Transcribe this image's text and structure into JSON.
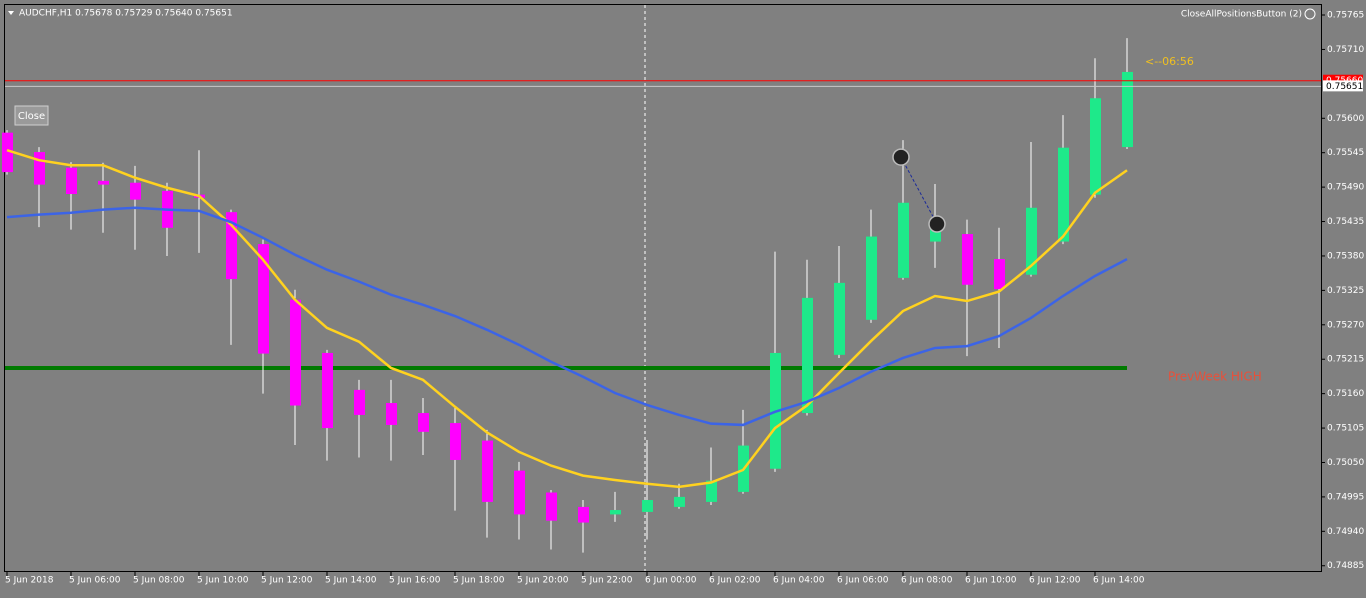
{
  "chart_data": {
    "type": "candlestick",
    "header_title": "AUDCHF,H1  0.75678 0.75729 0.75640 0.75651",
    "categories": [
      "5 Jun 2018",
      null,
      "5 Jun 06:00",
      null,
      "5 Jun 08:00",
      null,
      "5 Jun 10:00",
      null,
      "5 Jun 12:00",
      null,
      "5 Jun 14:00",
      null,
      "5 Jun 16:00",
      null,
      "5 Jun 18:00",
      null,
      "5 Jun 20:00",
      null,
      "5 Jun 22:00",
      null,
      "6 Jun 00:00",
      null,
      "6 Jun 02:00",
      null,
      "6 Jun 04:00",
      null,
      "6 Jun 06:00",
      null,
      "6 Jun 08:00",
      null,
      "6 Jun 10:00",
      null,
      "6 Jun 12:00",
      null,
      "6 Jun 14:00",
      null
    ],
    "open": [
      0.75577,
      0.75546,
      0.75521,
      0.755,
      0.75497,
      0.75484,
      0.75478,
      0.7545,
      0.75399,
      0.7531,
      0.75225,
      0.75166,
      0.75145,
      0.75129,
      0.75113,
      0.75085,
      0.75037,
      0.75002,
      0.74979,
      0.74967,
      0.74971,
      0.74979,
      0.74987,
      0.75003,
      0.7504,
      0.75129,
      0.75222,
      0.75278,
      0.75345,
      0.75403,
      0.75415,
      0.75375,
      0.7535,
      0.75403,
      0.75478,
      0.75554
    ],
    "high": [
      0.75581,
      0.75554,
      0.7553,
      0.75529,
      0.75524,
      0.75497,
      0.75549,
      0.75454,
      0.75406,
      0.75326,
      0.7523,
      0.75182,
      0.75182,
      0.75153,
      0.75141,
      0.75102,
      0.75051,
      0.75006,
      0.7499,
      0.75003,
      0.75086,
      0.75016,
      0.75074,
      0.75134,
      0.75387,
      0.75374,
      0.75396,
      0.75454,
      0.75565,
      0.75495,
      0.75438,
      0.75425,
      0.75562,
      0.75605,
      0.75696,
      0.75728
    ],
    "low": [
      0.7551,
      0.75426,
      0.75422,
      0.75417,
      0.7539,
      0.7538,
      0.75385,
      0.75238,
      0.7516,
      0.75078,
      0.75053,
      0.75058,
      0.75053,
      0.75062,
      0.74973,
      0.7493,
      0.74927,
      0.74911,
      0.74906,
      0.74955,
      0.74927,
      0.74976,
      0.74982,
      0.75,
      0.75035,
      0.75125,
      0.75217,
      0.75273,
      0.75342,
      0.75361,
      0.7522,
      0.75233,
      0.75347,
      0.75399,
      0.75473,
      0.75551
    ],
    "close": [
      0.75514,
      0.75494,
      0.75479,
      0.75494,
      0.7547,
      0.75425,
      0.75473,
      0.75343,
      0.75224,
      0.75141,
      0.75105,
      0.75126,
      0.7511,
      0.75099,
      0.75054,
      0.74987,
      0.74967,
      0.74957,
      0.74954,
      0.74974,
      0.7499,
      0.74995,
      0.75021,
      0.75077,
      0.75225,
      0.75313,
      0.75337,
      0.75411,
      0.75465,
      0.75425,
      0.75334,
      0.75327,
      0.75457,
      0.75553,
      0.75632,
      0.75674
    ],
    "up_color": "#1ee98a",
    "down_color": "#ff00ff",
    "wick_color": "#ffffff",
    "series": [
      {
        "color": "#ffd21f",
        "values": [
          0.75549,
          0.75533,
          0.75525,
          0.75525,
          0.75505,
          0.75489,
          0.75476,
          0.7543,
          0.75374,
          0.7531,
          0.75265,
          0.75243,
          0.75201,
          0.75182,
          0.75139,
          0.75098,
          0.75067,
          0.75045,
          0.75029,
          0.75022,
          0.75016,
          0.75011,
          0.75018,
          0.75038,
          0.75105,
          0.75141,
          0.75193,
          0.75244,
          0.75292,
          0.75316,
          0.75308,
          0.75323,
          0.75364,
          0.75411,
          0.75481,
          0.75517
        ]
      },
      {
        "color": "#3c64e6",
        "values": [
          0.75442,
          0.75446,
          0.75449,
          0.75454,
          0.75457,
          0.75454,
          0.75452,
          0.75434,
          0.75409,
          0.75382,
          0.75358,
          0.75339,
          0.75318,
          0.75302,
          0.75284,
          0.75262,
          0.75238,
          0.75211,
          0.75187,
          0.75161,
          0.75142,
          0.75126,
          0.75112,
          0.7511,
          0.75131,
          0.75147,
          0.75169,
          0.75195,
          0.75217,
          0.75233,
          0.75236,
          0.75252,
          0.75281,
          0.75316,
          0.75348,
          0.75375
        ]
      }
    ],
    "ylim": [
      0.74875,
      0.75781
    ],
    "yticks": [
      0.75765,
      {
        "value": 0.7571,
        "label": "0.75710"
      },
      {
        "value": 0.756,
        "label": "0.75600"
      },
      0.75545,
      {
        "value": 0.7549,
        "label": "0.75490"
      },
      0.75435,
      {
        "value": 0.7538,
        "label": "0.75380"
      },
      0.75325,
      {
        "value": 0.7527,
        "label": "0.75270"
      },
      0.75215,
      {
        "value": 0.7516,
        "label": "0.75160"
      },
      0.75105,
      {
        "value": 0.7505,
        "label": "0.75050"
      },
      0.74995,
      {
        "value": 0.7494,
        "label": "0.74940"
      },
      0.74885
    ],
    "hlines": [
      {
        "value": 0.7566,
        "label": "0.75660",
        "color": "#ff0000"
      },
      {
        "value": 0.75651,
        "color": "#c8c8c8"
      }
    ],
    "level": {
      "value": 0.75201,
      "color": "#007a00",
      "text": "PrevWeek HIGH",
      "text_color": "#e8503a"
    },
    "trade": {
      "index": [
        28,
        29
      ],
      "values": [
        0.75538,
        0.75431
      ]
    },
    "countdown": "<--06:56",
    "close_button": "Close",
    "close_all_button": "CloseAllPositionsButton (2)"
  }
}
